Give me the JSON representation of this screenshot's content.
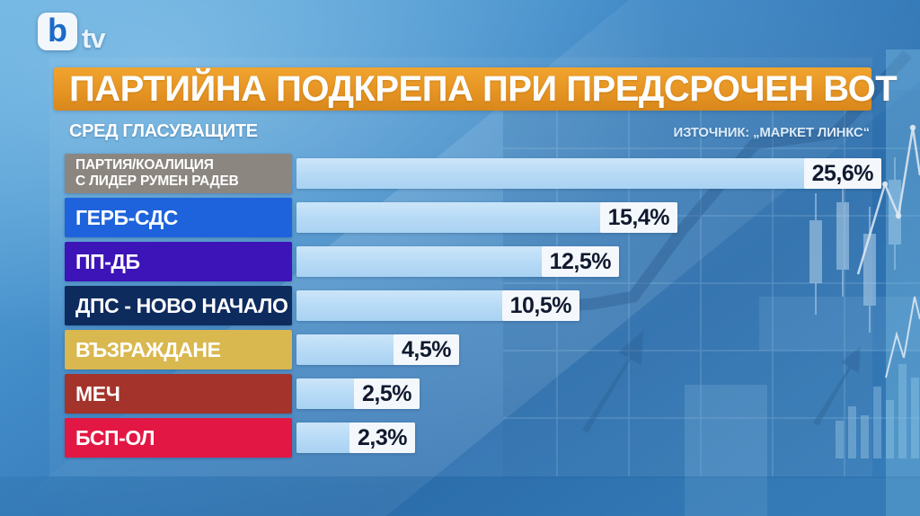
{
  "channel": {
    "logo_b": "b",
    "logo_tv": "tv"
  },
  "header": {
    "title": "ПАРТИЙНА ПОДКРЕПА ПРИ ПРЕДСРОЧЕН ВОТ"
  },
  "subheader": {
    "left": "СРЕД ГЛАСУВАЩИТЕ",
    "source": "ИЗТОЧНИК: „МАРКЕТ ЛИНКС“"
  },
  "colors": {
    "title_bar": "#E69423",
    "bar_fill": "#B4D9F5",
    "value_box": "#F4F8FC",
    "value_text": "#10192E",
    "background_top": "#5FA8DC",
    "background_deep": "#2E6FAE"
  },
  "chart_data": {
    "type": "bar",
    "orientation": "horizontal",
    "title": "ПАРТИЙНА ПОДКРЕПА ПРИ ПРЕДСРОЧЕН ВОТ",
    "subtitle": "СРЕД ГЛАСУВАЩИТЕ",
    "source": "ИЗТОЧНИК: „МАРКЕТ ЛИНКС“",
    "unit": "%",
    "decimal_separator": ",",
    "categories": [
      "ПАРТИЯ/КОАЛИЦИЯ С ЛИДЕР РУМЕН РАДЕВ",
      "ГЕРБ-СДС",
      "ПП-ДБ",
      "ДПС - НОВО НАЧАЛО",
      "ВЪЗРАЖДАНЕ",
      "МЕЧ",
      "БСП-ОЛ"
    ],
    "values": [
      25.6,
      15.4,
      12.5,
      10.5,
      4.5,
      2.5,
      2.3
    ],
    "value_labels": [
      "25,6%",
      "15,4%",
      "12,5%",
      "10,5%",
      "4,5%",
      "2,5%",
      "2,3%"
    ],
    "label_colors": [
      "#8B8680",
      "#1E63DC",
      "#3D14B8",
      "#0E2B5E",
      "#D9B84F",
      "#A4332B",
      "#E31744"
    ],
    "legend": "none",
    "grid": "off"
  },
  "parties": [
    {
      "line1": "ПАРТИЯ/КОАЛИЦИЯ",
      "line2": "С ЛИДЕР РУМЕН РАДЕВ",
      "value_label": "25,6%",
      "color": "#8B8680"
    },
    {
      "line1": "ГЕРБ-СДС",
      "line2": "",
      "value_label": "15,4%",
      "color": "#1E63DC"
    },
    {
      "line1": "ПП-ДБ",
      "line2": "",
      "value_label": "12,5%",
      "color": "#3D14B8"
    },
    {
      "line1": "ДПС - НОВО НАЧАЛО",
      "line2": "",
      "value_label": "10,5%",
      "color": "#0E2B5E"
    },
    {
      "line1": "ВЪЗРАЖДАНЕ",
      "line2": "",
      "value_label": "4,5%",
      "color": "#D9B84F"
    },
    {
      "line1": "МЕЧ",
      "line2": "",
      "value_label": "2,5%",
      "color": "#A4332B"
    },
    {
      "line1": "БСП-ОЛ",
      "line2": "",
      "value_label": "2,3%",
      "color": "#E31744"
    }
  ]
}
